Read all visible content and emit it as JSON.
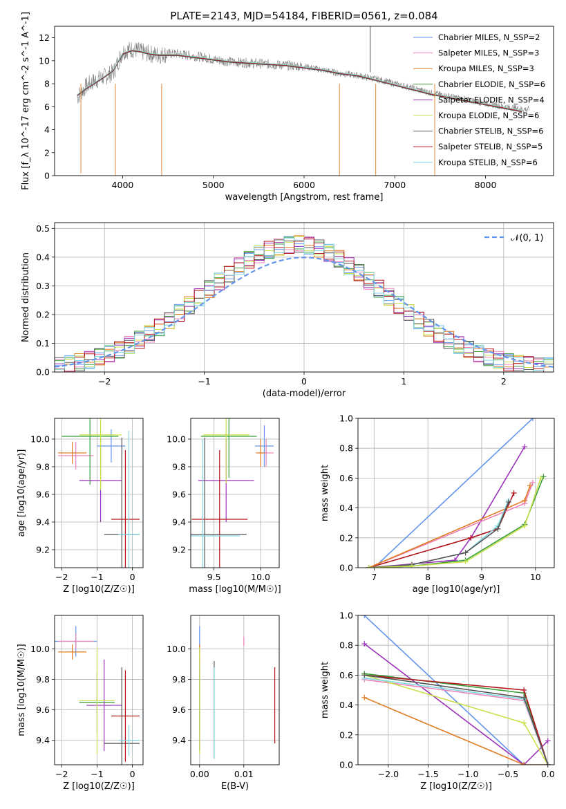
{
  "figure_title": "PLATE=2143, MJD=54184, FIBERID=0561, z=0.084",
  "colors": {
    "Chabrier MILES": "#6495ed",
    "Salpeter MILES": "#ee82b8",
    "Kroupa MILES": "#e07b1f",
    "Chabrier ELODIE": "#3a9e3a",
    "Salpeter ELODIE": "#9b30b8",
    "Kroupa ELODIE": "#c8e04a",
    "Chabrier STELIB": "#555555",
    "Salpeter STELIB": "#b3141a",
    "Kroupa STELIB": "#7fd6e0"
  },
  "chart_data": [
    {
      "id": "spectrum",
      "type": "line",
      "title": "PLATE=2143, MJD=54184, FIBERID=0561, z=0.084",
      "xlabel": "wavelength [Angstrom, rest frame]",
      "ylabel": "Flux [f_λ 10^-17 erg cm^-2 s^-1 A^-1]",
      "xlim": [
        3250,
        8750
      ],
      "ylim": [
        0,
        13
      ],
      "xticks": [
        4000,
        5000,
        6000,
        7000,
        8000
      ],
      "yticks": [
        0,
        2,
        4,
        6,
        8,
        10,
        12
      ],
      "legend_position": "top-right",
      "legend": [
        "Chabrier MILES, N_SSP=2",
        "Salpeter MILES, N_SSP=3",
        "Kroupa MILES, N_SSP=3",
        "Chabrier ELODIE, N_SSP=6",
        "Salpeter ELODIE, N_SSP=4",
        "Kroupa ELODIE, N_SSP=6",
        "Chabrier STELIB, N_SSP=6",
        "Salpeter STELIB, N_SSP=5",
        "Kroupa STELIB, N_SSP=6"
      ],
      "data_series": {
        "name": "data",
        "color": "#808080",
        "x": [
          3500,
          3600,
          3700,
          3800,
          3900,
          4000,
          4100,
          4200,
          4300,
          4400,
          4500,
          4600,
          4700,
          4800,
          4900,
          5000,
          5200,
          5400,
          5600,
          5800,
          6000,
          6200,
          6400,
          6600,
          6800,
          7000,
          7200,
          7400,
          7600,
          7800,
          8000,
          8200,
          8400,
          8750
        ],
        "y": [
          6.8,
          7.8,
          8.3,
          8.6,
          9.0,
          10.8,
          11.0,
          10.8,
          10.6,
          10.5,
          10.6,
          10.6,
          10.5,
          10.4,
          10.3,
          10.1,
          9.9,
          9.8,
          9.7,
          9.6,
          9.5,
          9.2,
          8.9,
          8.7,
          8.4,
          8.0,
          7.6,
          7.2,
          6.9,
          6.6,
          6.3,
          6.0,
          5.8,
          5.6
        ]
      },
      "model_series": {
        "x": [
          3500,
          3600,
          3700,
          3800,
          3900,
          4000,
          4100,
          4200,
          4300,
          4400,
          4500,
          4600,
          4700,
          4800,
          4900,
          5000,
          5200,
          5400,
          5600,
          5800,
          6000,
          6200,
          6400,
          6600,
          6800,
          7000,
          7200,
          7400,
          7600,
          7800,
          8000,
          8200,
          8400
        ],
        "y": [
          7.0,
          7.6,
          8.1,
          8.6,
          9.2,
          10.6,
          10.9,
          10.8,
          10.6,
          10.5,
          10.5,
          10.5,
          10.4,
          10.3,
          10.2,
          10.1,
          9.9,
          9.8,
          9.7,
          9.6,
          9.4,
          9.2,
          8.9,
          8.7,
          8.3,
          7.9,
          7.5,
          7.1,
          6.8,
          6.5,
          6.2,
          5.9,
          5.6
        ]
      }
    },
    {
      "id": "residual-hist",
      "type": "line",
      "xlabel": "(data-model)/error",
      "ylabel": "Normed distribution",
      "xlim": [
        -2.5,
        2.5
      ],
      "ylim": [
        0,
        0.52
      ],
      "xticks": [
        -2,
        -1,
        0,
        1,
        2
      ],
      "yticks": [
        0.0,
        0.1,
        0.2,
        0.3,
        0.4,
        0.5
      ],
      "legend_position": "top-right",
      "legend": [
        "𝒩(0, 1)"
      ],
      "bin_width": 0.1,
      "hist": [
        0.022,
        0.027,
        0.034,
        0.042,
        0.052,
        0.064,
        0.078,
        0.094,
        0.112,
        0.132,
        0.155,
        0.18,
        0.205,
        0.232,
        0.26,
        0.288,
        0.315,
        0.342,
        0.368,
        0.39,
        0.41,
        0.425,
        0.436,
        0.442,
        0.445,
        0.44,
        0.43,
        0.415,
        0.395,
        0.37,
        0.345,
        0.318,
        0.29,
        0.262,
        0.234,
        0.206,
        0.18,
        0.155,
        0.132,
        0.112,
        0.094,
        0.078,
        0.064,
        0.052,
        0.042,
        0.034,
        0.028,
        0.024,
        0.021,
        0.019
      ]
    },
    {
      "id": "age-vs-Z",
      "type": "scatter",
      "xlabel": "Z [log10(Z/Z☉)]",
      "ylabel": "age  [log10(age/yr)]",
      "xlim": [
        -2.2,
        0.3
      ],
      "ylim": [
        9.07,
        10.15
      ],
      "xticks": [
        -2,
        -1,
        0
      ],
      "yticks": [
        9.2,
        9.4,
        9.6,
        9.8,
        10.0
      ],
      "points": [
        {
          "series": "Chabrier MILES",
          "x": -0.6,
          "y": 9.95,
          "xerr": 0.4,
          "yerr": 0.12
        },
        {
          "series": "Salpeter MILES",
          "x": -1.6,
          "y": 9.88,
          "xerr": 0.5,
          "yerr": 0.1
        },
        {
          "series": "Kroupa MILES",
          "x": -1.7,
          "y": 9.9,
          "xerr": 0.4,
          "yerr": 0.08
        },
        {
          "series": "Chabrier ELODIE",
          "x": -1.2,
          "y": 10.02,
          "xerr": 0.8,
          "yerr": 0.35
        },
        {
          "series": "Salpeter ELODIE",
          "x": -0.9,
          "y": 9.7,
          "xerr": 0.6,
          "yerr": 0.3
        },
        {
          "series": "Kroupa ELODIE",
          "x": -0.9,
          "y": 10.03,
          "xerr": 0.6,
          "yerr": 0.4
        },
        {
          "series": "Chabrier STELIB",
          "x": -0.3,
          "y": 9.31,
          "xerr": 0.5,
          "yerr": 0.7
        },
        {
          "series": "Salpeter STELIB",
          "x": -0.2,
          "y": 9.42,
          "xerr": 0.4,
          "yerr": 0.5
        },
        {
          "series": "Kroupa STELIB",
          "x": -0.1,
          "y": 9.31,
          "xerr": 0.3,
          "yerr": 0.75
        }
      ]
    },
    {
      "id": "age-vs-mass",
      "type": "scatter",
      "xlabel": "mass [log10(M/M☉)]",
      "ylabel": "",
      "xlim": [
        9.25,
        10.2
      ],
      "ylim": [
        9.07,
        10.15
      ],
      "xticks": [
        9.5,
        10.0
      ],
      "yticks": [
        9.2,
        9.4,
        9.6,
        9.8,
        10.0
      ],
      "points": [
        {
          "series": "Chabrier MILES",
          "x": 10.04,
          "y": 9.95,
          "xerr": 0.1,
          "yerr": 0.15
        },
        {
          "series": "Salpeter MILES",
          "x": 10.06,
          "y": 9.9,
          "xerr": 0.08,
          "yerr": 0.1
        },
        {
          "series": "Kroupa MILES",
          "x": 10.0,
          "y": 9.9,
          "xerr": 0.05,
          "yerr": 0.1
        },
        {
          "series": "Chabrier ELODIE",
          "x": 9.66,
          "y": 10.02,
          "xerr": 0.3,
          "yerr": 0.3
        },
        {
          "series": "Salpeter ELODIE",
          "x": 9.63,
          "y": 9.7,
          "xerr": 0.3,
          "yerr": 0.3
        },
        {
          "series": "Kroupa ELODIE",
          "x": 9.63,
          "y": 10.03,
          "xerr": 0.25,
          "yerr": 0.35
        },
        {
          "series": "Chabrier STELIB",
          "x": 9.4,
          "y": 9.31,
          "xerr": 0.45,
          "yerr": 0.7
        },
        {
          "series": "Salpeter STELIB",
          "x": 9.56,
          "y": 9.42,
          "xerr": 0.3,
          "yerr": 0.5
        },
        {
          "series": "Kroupa STELIB",
          "x": 9.38,
          "y": 9.3,
          "xerr": 0.4,
          "yerr": 0.7
        }
      ]
    },
    {
      "id": "massweight-vs-age",
      "type": "line",
      "xlabel": "age  [log10(age/yr)]",
      "ylabel": "mass weight",
      "xlim": [
        6.7,
        10.35
      ],
      "ylim": [
        0,
        1.0
      ],
      "xticks": [
        7,
        8,
        9,
        10
      ],
      "yticks": [
        0.0,
        0.2,
        0.4,
        0.6,
        0.8,
        1.0
      ],
      "series": [
        {
          "name": "Chabrier MILES",
          "x": [
            7.0,
            9.95
          ],
          "y": [
            0.0,
            1.0
          ]
        },
        {
          "name": "Salpeter ELODIE",
          "x": [
            6.9,
            8.5,
            8.8,
            9.8
          ],
          "y": [
            0.0,
            0.05,
            0.2,
            0.81
          ]
        },
        {
          "name": "Salpeter STELIB",
          "x": [
            6.9,
            8.8,
            9.3,
            9.6
          ],
          "y": [
            0.0,
            0.2,
            0.26,
            0.5
          ]
        },
        {
          "name": "Salpeter MILES",
          "x": [
            6.9,
            9.8,
            9.95
          ],
          "y": [
            0.0,
            0.43,
            0.57
          ]
        },
        {
          "name": "Kroupa MILES",
          "x": [
            6.9,
            9.8,
            9.9
          ],
          "y": [
            0.0,
            0.45,
            0.55
          ]
        },
        {
          "name": "Kroupa STELIB",
          "x": [
            6.9,
            7.7,
            8.7,
            9.3,
            9.5
          ],
          "y": [
            0.0,
            0.02,
            0.1,
            0.28,
            0.45
          ]
        },
        {
          "name": "Chabrier STELIB",
          "x": [
            6.9,
            7.7,
            8.7,
            9.3,
            9.5
          ],
          "y": [
            0.0,
            0.02,
            0.1,
            0.26,
            0.44
          ]
        },
        {
          "name": "Chabrier ELODIE",
          "x": [
            6.9,
            7.7,
            8.7,
            9.8,
            10.15
          ],
          "y": [
            0.0,
            0.01,
            0.05,
            0.29,
            0.61
          ]
        },
        {
          "name": "Kroupa ELODIE",
          "x": [
            6.9,
            7.7,
            8.7,
            9.8,
            10.1
          ],
          "y": [
            0.0,
            0.01,
            0.04,
            0.28,
            0.6
          ]
        }
      ]
    },
    {
      "id": "mass-vs-Z",
      "type": "scatter",
      "xlabel": "Z [log10(Z/Z☉)]",
      "ylabel": "mass [log10(M/M☉)]",
      "xlim": [
        -2.2,
        0.3
      ],
      "ylim": [
        9.24,
        10.22
      ],
      "xticks": [
        -2,
        -1,
        0
      ],
      "yticks": [
        9.4,
        9.6,
        9.8,
        10.0
      ],
      "points": [
        {
          "series": "Chabrier MILES",
          "x": -1.6,
          "y": 10.05,
          "xerr": 0.6,
          "yerr": 0.1
        },
        {
          "series": "Salpeter MILES",
          "x": -1.6,
          "y": 10.05,
          "xerr": 0.5,
          "yerr": 0.05
        },
        {
          "series": "Kroupa MILES",
          "x": -1.7,
          "y": 9.98,
          "xerr": 0.4,
          "yerr": 0.05
        },
        {
          "series": "Chabrier ELODIE",
          "x": -1.0,
          "y": 9.65,
          "xerr": 0.5,
          "yerr": 0.2
        },
        {
          "series": "Salpeter ELODIE",
          "x": -0.8,
          "y": 9.63,
          "xerr": 0.5,
          "yerr": 0.3
        },
        {
          "series": "Kroupa ELODIE",
          "x": -1.0,
          "y": 9.66,
          "xerr": 0.5,
          "yerr": 0.35
        },
        {
          "series": "Chabrier STELIB",
          "x": -0.3,
          "y": 9.38,
          "xerr": 0.5,
          "yerr": 0.5
        },
        {
          "series": "Salpeter STELIB",
          "x": -0.2,
          "y": 9.56,
          "xerr": 0.4,
          "yerr": 0.3
        },
        {
          "series": "Kroupa STELIB",
          "x": -0.1,
          "y": 9.4,
          "xerr": 0.3,
          "yerr": 0.1
        }
      ]
    },
    {
      "id": "mass-vs-EBV",
      "type": "scatter",
      "xlabel": "E(B-V)",
      "ylabel": "",
      "xlim": [
        -0.002,
        0.018
      ],
      "ylim": [
        9.24,
        10.22
      ],
      "xticks": [
        0.0,
        0.01
      ],
      "yticks": [
        9.4,
        9.6,
        9.8,
        10.0
      ],
      "xtick_labels": [
        "0.00",
        "0.01"
      ],
      "points": [
        {
          "series": "Chabrier MILES",
          "x": 0.0,
          "y": 10.05,
          "yerr": 0.1
        },
        {
          "series": "Salpeter MILES",
          "x": 0.01,
          "y": 10.05,
          "yerr": 0.03
        },
        {
          "series": "Kroupa MILES",
          "x": 0.0,
          "y": 9.98,
          "yerr": 0.05
        },
        {
          "series": "Chabrier ELODIE",
          "x": 0.0,
          "y": 9.65,
          "yerr": 0.2
        },
        {
          "series": "Salpeter ELODIE",
          "x": 0.0,
          "y": 9.63,
          "yerr": 0.3
        },
        {
          "series": "Kroupa ELODIE",
          "x": 0.0,
          "y": 9.66,
          "yerr": 0.35
        },
        {
          "series": "Chabrier STELIB",
          "x": 0.0033,
          "y": 9.6,
          "yerr": 0.32
        },
        {
          "series": "Salpeter STELIB",
          "x": 0.017,
          "y": 9.63,
          "yerr": 0.25
        },
        {
          "series": "Kroupa STELIB",
          "x": 0.0033,
          "y": 9.58,
          "yerr": 0.3
        }
      ]
    },
    {
      "id": "massweight-vs-Z",
      "type": "line",
      "xlabel": "Z [log10(Z/Z☉)]",
      "ylabel": "mass weight",
      "xlim": [
        -2.38,
        0.08
      ],
      "ylim": [
        0,
        1.0
      ],
      "xticks": [
        -2.0,
        -1.5,
        -1.0,
        -0.5,
        0.0
      ],
      "yticks": [
        0.0,
        0.2,
        0.4,
        0.6,
        0.8,
        1.0
      ],
      "xtick_labels": [
        "−2.0",
        "−1.5",
        "−1.0",
        "−0.5",
        "0.0"
      ],
      "series": [
        {
          "name": "Chabrier MILES",
          "x": [
            -2.3,
            -0.3
          ],
          "y": [
            1.0,
            0.0
          ]
        },
        {
          "name": "Salpeter ELODIE",
          "x": [
            -2.3,
            -0.3,
            0.0
          ],
          "y": [
            0.81,
            0.0,
            0.16
          ]
        },
        {
          "name": "Chabrier ELODIE",
          "x": [
            -2.3,
            -0.3,
            0.0
          ],
          "y": [
            0.61,
            0.48,
            0.0
          ]
        },
        {
          "name": "Salpeter STELIB",
          "x": [
            -2.3,
            -0.3,
            0.0
          ],
          "y": [
            0.6,
            0.5,
            0.0
          ]
        },
        {
          "name": "Salpeter MILES",
          "x": [
            -2.3,
            -0.3,
            0.0
          ],
          "y": [
            0.57,
            0.43,
            0.0
          ]
        },
        {
          "name": "Kroupa ELODIE",
          "x": [
            -2.3,
            -0.3,
            0.0
          ],
          "y": [
            0.6,
            0.28,
            0.0
          ]
        },
        {
          "name": "Kroupa STELIB",
          "x": [
            -2.3,
            -0.3,
            0.0
          ],
          "y": [
            0.58,
            0.44,
            0.0
          ]
        },
        {
          "name": "Kroupa MILES",
          "x": [
            -2.3,
            -0.3,
            0.0
          ],
          "y": [
            0.45,
            0.0,
            0.0
          ]
        },
        {
          "name": "Chabrier STELIB",
          "x": [
            -2.3,
            -0.3,
            0.0
          ],
          "y": [
            0.6,
            0.45,
            0.0
          ]
        }
      ]
    }
  ]
}
